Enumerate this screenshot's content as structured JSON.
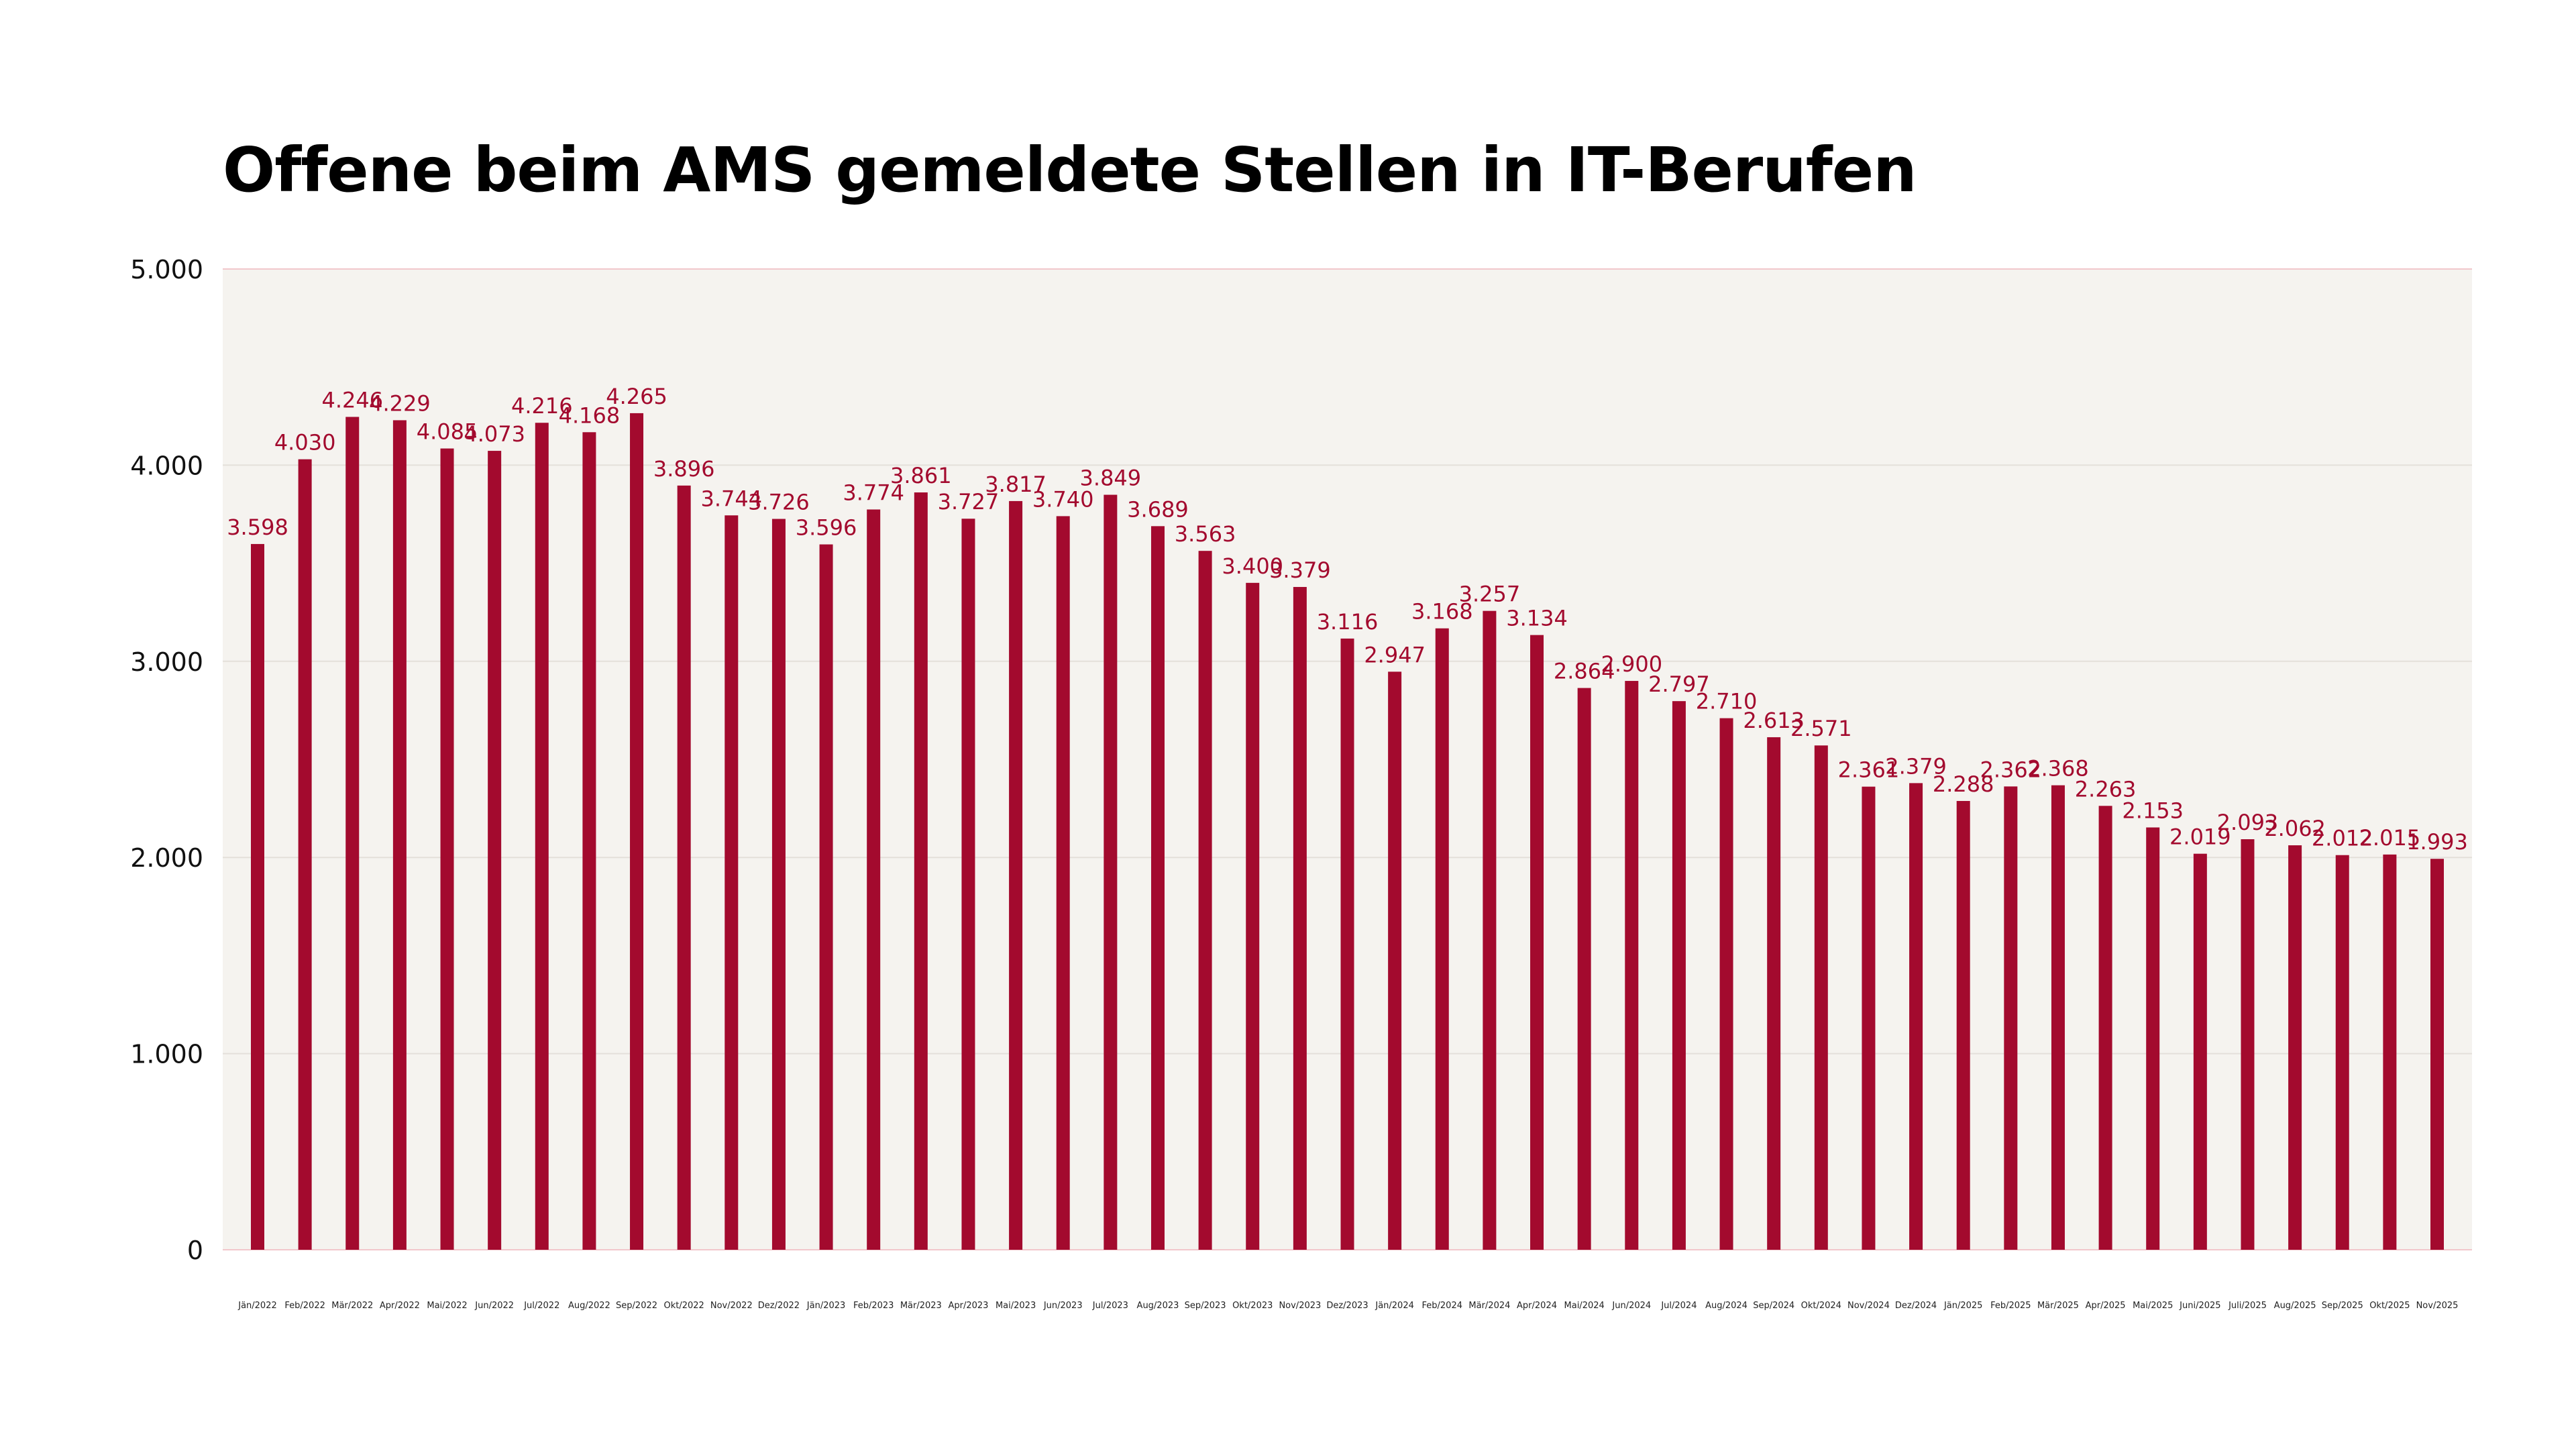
{
  "chart_data": {
    "type": "bar",
    "title": "Offene beim AMS gemeldete Stellen in IT-Berufen",
    "xlabel": "",
    "ylabel": "",
    "ylim": [
      0,
      5000
    ],
    "yticks": [
      0,
      1000,
      2000,
      3000,
      4000,
      5000
    ],
    "ytick_labels": [
      "0",
      "1.000",
      "2.000",
      "3.000",
      "4.000",
      "5.000"
    ],
    "grid": true,
    "colors": {
      "bar": "#A30A2E",
      "label": "#A30A2E",
      "plot_bg": "#F5F3EF",
      "grid": "#E4E0DA",
      "top_line": "#F2C7CC"
    },
    "categories": [
      "Jän/2022",
      "Feb/2022",
      "Mär/2022",
      "Apr/2022",
      "Mai/2022",
      "Jun/2022",
      "Jul/2022",
      "Aug/2022",
      "Sep/2022",
      "Okt/2022",
      "Nov/2022",
      "Dez/2022",
      "Jän/2023",
      "Feb/2023",
      "Mär/2023",
      "Apr/2023",
      "Mai/2023",
      "Jun/2023",
      "Jul/2023",
      "Aug/2023",
      "Sep/2023",
      "Okt/2023",
      "Nov/2023",
      "Dez/2023",
      "Jän/2024",
      "Feb/2024",
      "Mär/2024",
      "Apr/2024",
      "Mai/2024",
      "Jun/2024",
      "Jul/2024",
      "Aug/2024",
      "Sep/2024",
      "Okt/2024",
      "Nov/2024",
      "Dez/2024",
      "Jän/2025",
      "Feb/2025",
      "Mär/2025",
      "Apr/2025",
      "Mai/2025",
      "Juni/2025",
      "Juli/2025",
      "Aug/2025",
      "Sep/2025",
      "Okt/2025",
      "Nov/2025"
    ],
    "values": [
      3598,
      4030,
      4246,
      4229,
      4085,
      4073,
      4216,
      4168,
      4265,
      3896,
      3744,
      3726,
      3596,
      3774,
      3861,
      3727,
      3817,
      3740,
      3849,
      3689,
      3563,
      3400,
      3379,
      3116,
      2947,
      3168,
      3257,
      3134,
      2864,
      2900,
      2797,
      2710,
      2613,
      2571,
      2361,
      2379,
      2288,
      2362,
      2368,
      2263,
      2153,
      2019,
      2093,
      2062,
      2012,
      2015,
      1993
    ],
    "data_labels": [
      "3.598",
      "4.030",
      "4.246",
      "4.229",
      "4.085",
      "4.073",
      "4.216",
      "4.168",
      "4.265",
      "3.896",
      "3.744",
      "3.726",
      "3.596",
      "3.774",
      "3.861",
      "3.727",
      "3.817",
      "3.740",
      "3.849",
      "3.689",
      "3.563",
      "3.400",
      "3.379",
      "3.116",
      "2.947",
      "3.168",
      "3.257",
      "3.134",
      "2.864",
      "2.900",
      "2.797",
      "2.710",
      "2.613",
      "2.571",
      "2.361",
      "2.379",
      "2.288",
      "2.362",
      "2.368",
      "2.263",
      "2.153",
      "2.019",
      "2.093",
      "2.062",
      "2.012",
      "2.015",
      "1.993"
    ]
  }
}
